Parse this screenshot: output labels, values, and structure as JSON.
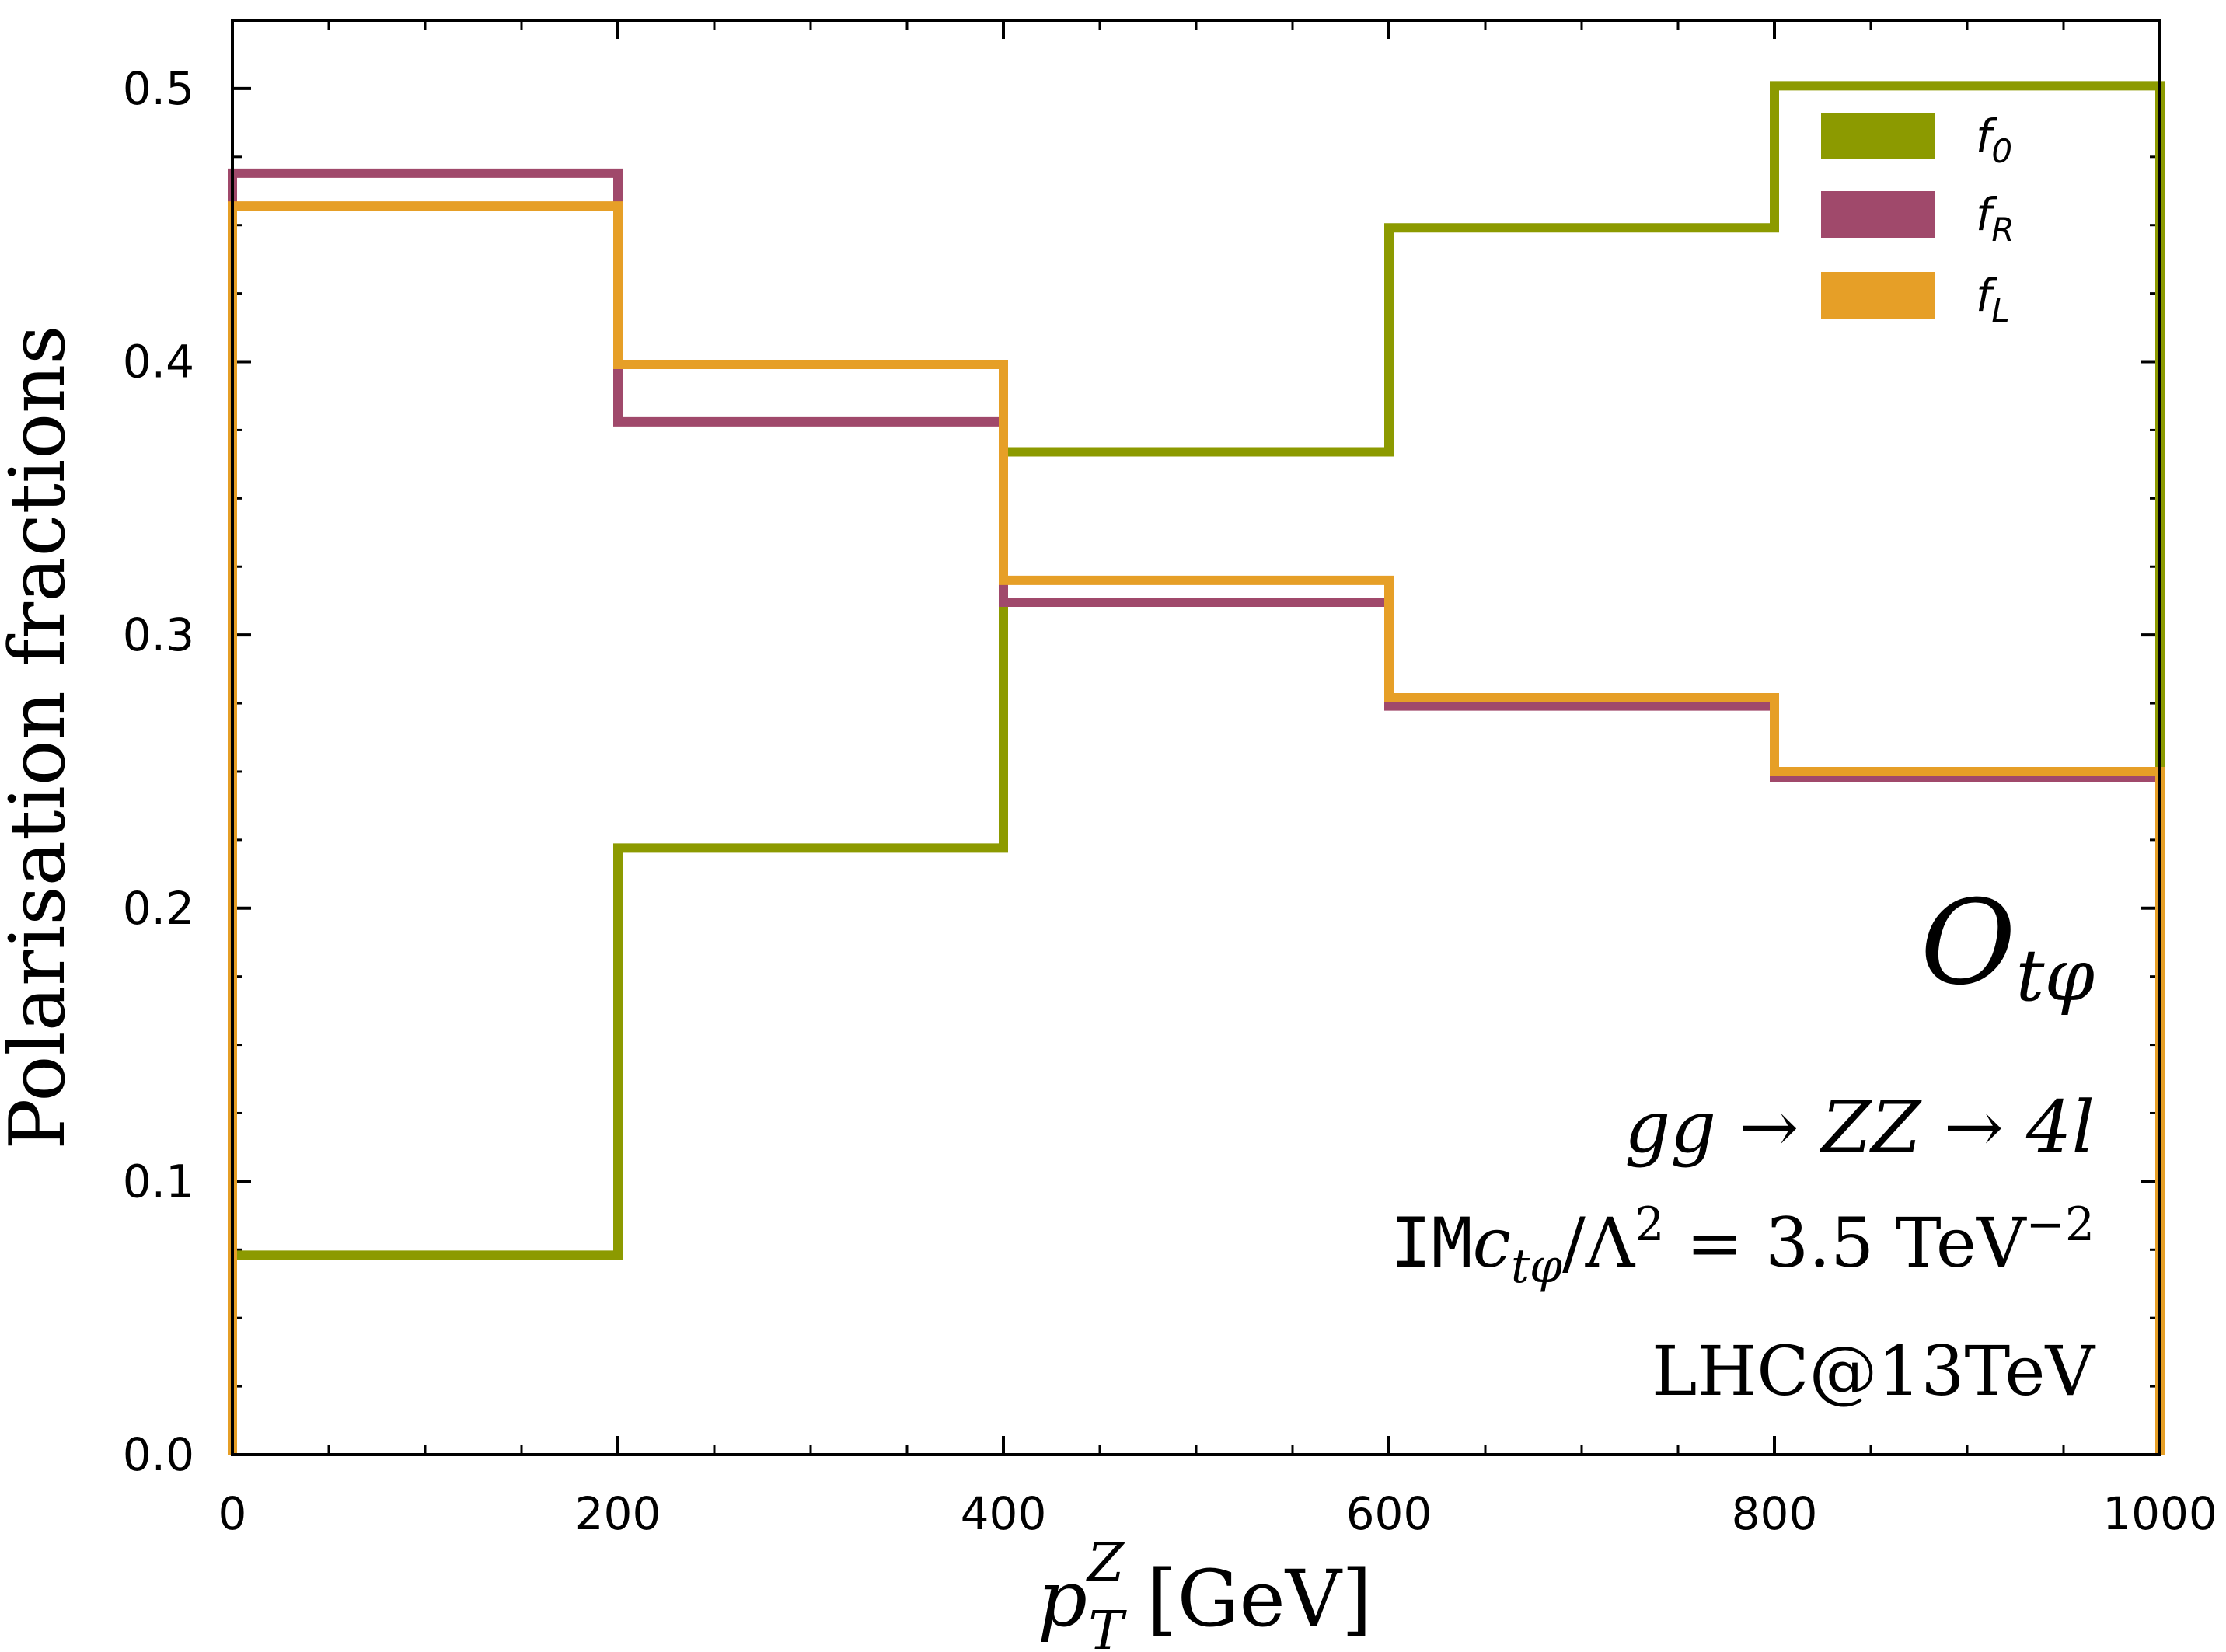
{
  "chart_data": {
    "type": "step",
    "title": "",
    "xlabel": {
      "base": "p",
      "sub": "T",
      "sup": "Z",
      "unit": "[GeV]"
    },
    "ylabel": "Polarisation fractions",
    "xlim": [
      0,
      1000
    ],
    "ylim": [
      0,
      0.525
    ],
    "xticks": [
      0,
      200,
      400,
      600,
      800,
      1000
    ],
    "yticks": [
      0.0,
      0.1,
      0.2,
      0.3,
      0.4,
      0.5
    ],
    "xtick_labels": [
      "0",
      "200",
      "400",
      "600",
      "800",
      "1000"
    ],
    "ytick_labels": [
      "0.0",
      "0.1",
      "0.2",
      "0.3",
      "0.4",
      "0.5"
    ],
    "bin_edges": [
      0,
      200,
      400,
      600,
      800,
      1000
    ],
    "series": [
      {
        "name": "f0",
        "label_base": "f",
        "label_sub": "0",
        "color": "#8c9a00",
        "values": [
          0.073,
          0.222,
          0.367,
          0.449,
          0.501
        ]
      },
      {
        "name": "fR",
        "label_base": "f",
        "label_sub": "R",
        "color": "#a0496b",
        "values": [
          0.469,
          0.378,
          0.312,
          0.274,
          0.248
        ]
      },
      {
        "name": "fL",
        "label_base": "f",
        "label_sub": "L",
        "color": "#e69f27",
        "values": [
          0.457,
          0.399,
          0.32,
          0.277,
          0.25
        ]
      }
    ],
    "legend_position": "top-right",
    "annotations": {
      "operator_base": "O",
      "operator_sub": "tφ",
      "process": "gg → ZZ → 4l",
      "coupling_prefix": "IM",
      "coupling_c": "c",
      "coupling_c_sub": "tφ",
      "coupling_rest": "/Λ",
      "coupling_rest_sup": "2",
      "coupling_value": " = 3.5 TeV",
      "coupling_value_sup": "−2",
      "collider": "LHC@13TeV"
    }
  }
}
